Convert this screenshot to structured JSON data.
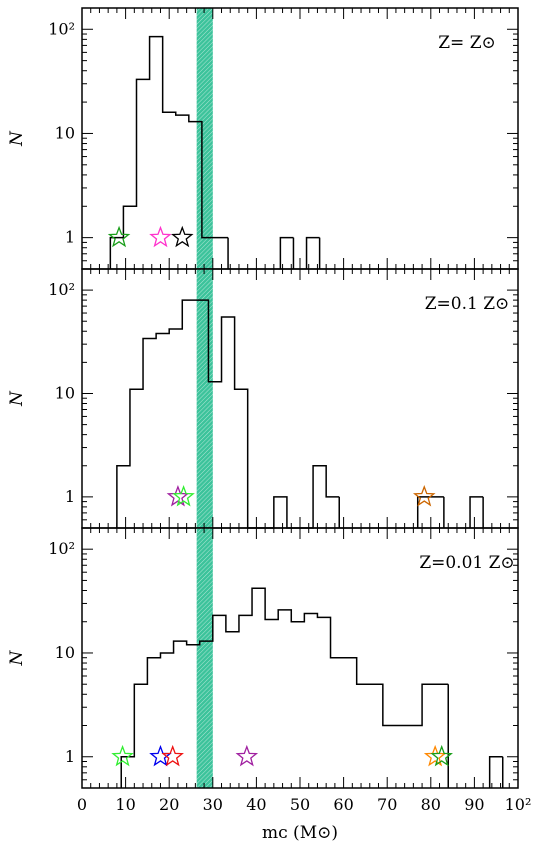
{
  "chart_data": [
    {
      "type": "histogram",
      "annotation": "Z= Z⊙",
      "yscale": "log",
      "xlim": [
        0,
        100
      ],
      "ylim": [
        0.5,
        160
      ],
      "x_ticks": [
        "0",
        "10",
        "20",
        "30",
        "40",
        "50",
        "60",
        "70",
        "80",
        "90",
        "10²"
      ],
      "y_ticks": [
        "1",
        "10",
        "10²"
      ],
      "ylabel": "N",
      "xlabel": "",
      "bins": [
        {
          "x0": 6.5,
          "x1": 9.5,
          "count": 1
        },
        {
          "x0": 9.5,
          "x1": 12.5,
          "count": 2
        },
        {
          "x0": 12.5,
          "x1": 15.5,
          "count": 33
        },
        {
          "x0": 15.5,
          "x1": 18.5,
          "count": 85
        },
        {
          "x0": 18.5,
          "x1": 21.5,
          "count": 16
        },
        {
          "x0": 21.5,
          "x1": 24.5,
          "count": 15
        },
        {
          "x0": 24.5,
          "x1": 27.5,
          "count": 13
        },
        {
          "x0": 27.5,
          "x1": 30.5,
          "count": 1
        },
        {
          "x0": 30.5,
          "x1": 33.5,
          "count": 1
        },
        {
          "x0": 45.5,
          "x1": 48.5,
          "count": 1
        },
        {
          "x0": 51.5,
          "x1": 54.5,
          "count": 1
        }
      ],
      "markers": [
        {
          "x": 8.5,
          "y": 1,
          "color": "#1a9e1a"
        },
        {
          "x": 18.0,
          "y": 1,
          "color": "#ff33cc"
        },
        {
          "x": 23.0,
          "y": 1,
          "color": "#000000"
        }
      ]
    },
    {
      "type": "histogram",
      "annotation": "Z=0.1  Z⊙",
      "yscale": "log",
      "xlim": [
        0,
        100
      ],
      "ylim": [
        0.5,
        160
      ],
      "x_ticks": [
        "0",
        "10",
        "20",
        "30",
        "40",
        "50",
        "60",
        "70",
        "80",
        "90",
        "10²"
      ],
      "y_ticks": [
        "1",
        "10",
        "10²"
      ],
      "ylabel": "N",
      "xlabel": "",
      "bins": [
        {
          "x0": 8.0,
          "x1": 11.0,
          "count": 2
        },
        {
          "x0": 11.0,
          "x1": 14.0,
          "count": 11
        },
        {
          "x0": 14.0,
          "x1": 17.0,
          "count": 34
        },
        {
          "x0": 17.0,
          "x1": 20.0,
          "count": 38
        },
        {
          "x0": 20.0,
          "x1": 23.0,
          "count": 42
        },
        {
          "x0": 23.0,
          "x1": 26.0,
          "count": 80
        },
        {
          "x0": 26.0,
          "x1": 29.0,
          "count": 80
        },
        {
          "x0": 29.0,
          "x1": 32.0,
          "count": 13
        },
        {
          "x0": 32.0,
          "x1": 35.0,
          "count": 55
        },
        {
          "x0": 35.0,
          "x1": 38.0,
          "count": 11
        },
        {
          "x0": 38.0,
          "x1": 41.0,
          "count": 0
        },
        {
          "x0": 41.0,
          "x1": 44.0,
          "count": 0
        },
        {
          "x0": 44.0,
          "x1": 47.0,
          "count": 1
        },
        {
          "x0": 47.0,
          "x1": 50.0,
          "count": 0
        },
        {
          "x0": 50.0,
          "x1": 53.0,
          "count": 0
        },
        {
          "x0": 53.0,
          "x1": 56.0,
          "count": 2
        },
        {
          "x0": 56.0,
          "x1": 59.0,
          "count": 1
        },
        {
          "x0": 77.0,
          "x1": 83.0,
          "count": 1
        },
        {
          "x0": 89.0,
          "x1": 92.0,
          "count": 1
        }
      ],
      "markers": [
        {
          "x": 22.0,
          "y": 1,
          "color": "#a020a0"
        },
        {
          "x": 23.3,
          "y": 1,
          "color": "#33ee33"
        },
        {
          "x": 78.5,
          "y": 1,
          "color": "#cc6600"
        }
      ]
    },
    {
      "type": "histogram",
      "annotation": "Z=0.01  Z⊙",
      "yscale": "log",
      "xlim": [
        0,
        100
      ],
      "ylim": [
        0.5,
        160
      ],
      "x_ticks": [
        "0",
        "10",
        "20",
        "30",
        "40",
        "50",
        "60",
        "70",
        "80",
        "90",
        "10²"
      ],
      "y_ticks": [
        "1",
        "10",
        "10²"
      ],
      "ylabel": "N",
      "xlabel": "mᴄ  (M⊙)",
      "bins": [
        {
          "x0": 9.0,
          "x1": 12.0,
          "count": 1
        },
        {
          "x0": 12.0,
          "x1": 15.0,
          "count": 5
        },
        {
          "x0": 15.0,
          "x1": 18.0,
          "count": 9
        },
        {
          "x0": 18.0,
          "x1": 21.0,
          "count": 10
        },
        {
          "x0": 21.0,
          "x1": 24.0,
          "count": 13
        },
        {
          "x0": 24.0,
          "x1": 27.0,
          "count": 12
        },
        {
          "x0": 27.0,
          "x1": 30.0,
          "count": 13
        },
        {
          "x0": 30.0,
          "x1": 33.0,
          "count": 23
        },
        {
          "x0": 33.0,
          "x1": 36.0,
          "count": 16
        },
        {
          "x0": 36.0,
          "x1": 39.0,
          "count": 23
        },
        {
          "x0": 39.0,
          "x1": 42.0,
          "count": 42
        },
        {
          "x0": 42.0,
          "x1": 45.0,
          "count": 21
        },
        {
          "x0": 45.0,
          "x1": 48.0,
          "count": 26
        },
        {
          "x0": 48.0,
          "x1": 51.0,
          "count": 20
        },
        {
          "x0": 51.0,
          "x1": 54.0,
          "count": 24
        },
        {
          "x0": 54.0,
          "x1": 57.0,
          "count": 22
        },
        {
          "x0": 57.0,
          "x1": 60.0,
          "count": 9
        },
        {
          "x0": 60.0,
          "x1": 63.0,
          "count": 9
        },
        {
          "x0": 63.0,
          "x1": 66.0,
          "count": 5
        },
        {
          "x0": 66.0,
          "x1": 69.0,
          "count": 5
        },
        {
          "x0": 69.0,
          "x1": 72.0,
          "count": 2
        },
        {
          "x0": 72.0,
          "x1": 75.0,
          "count": 2
        },
        {
          "x0": 75.0,
          "x1": 78.0,
          "count": 2
        },
        {
          "x0": 78.0,
          "x1": 81.0,
          "count": 5
        },
        {
          "x0": 81.0,
          "x1": 84.0,
          "count": 5
        },
        {
          "x0": 93.5,
          "x1": 96.5,
          "count": 1
        }
      ],
      "markers": [
        {
          "x": 9.3,
          "y": 1,
          "color": "#33ee33"
        },
        {
          "x": 18.0,
          "y": 1,
          "color": "#0000ee"
        },
        {
          "x": 20.8,
          "y": 1,
          "color": "#ee1111"
        },
        {
          "x": 37.8,
          "y": 1,
          "color": "#a020a0"
        },
        {
          "x": 81.0,
          "y": 1,
          "color": "#ff8800"
        },
        {
          "x": 82.5,
          "y": 1,
          "color": "#1a9e1a"
        }
      ]
    }
  ],
  "band": {
    "x0": 26.3,
    "x1": 30.0,
    "color": "#3cc39b"
  }
}
